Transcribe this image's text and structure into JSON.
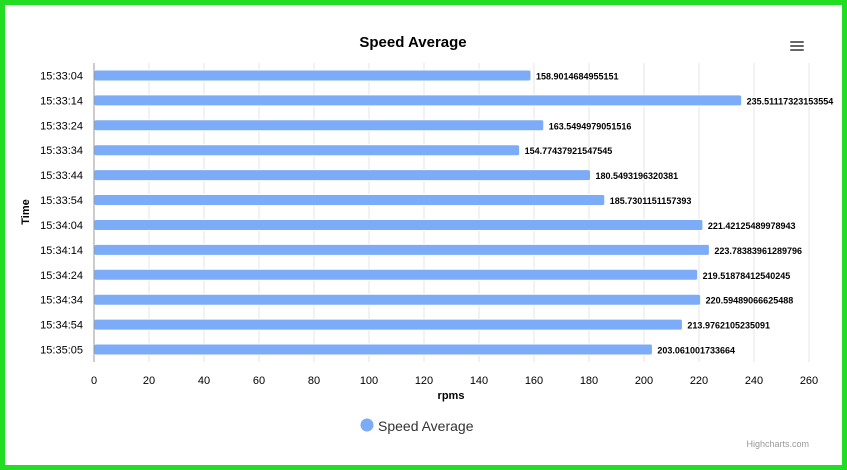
{
  "chart_data": {
    "type": "bar",
    "orientation": "horizontal",
    "title": "Speed Average",
    "xlabel": "rpms",
    "ylabel": "Time",
    "categories": [
      "15:33:04",
      "15:33:14",
      "15:33:24",
      "15:33:34",
      "15:33:44",
      "15:33:54",
      "15:34:04",
      "15:34:14",
      "15:34:24",
      "15:34:34",
      "15:34:54",
      "15:35:05"
    ],
    "series": [
      {
        "name": "Speed Average",
        "values": [
          158.9014684955151,
          235.51117323153554,
          163.5494979051516,
          154.77437921547545,
          180.5493196320381,
          185.7301151157393,
          221.42125489978943,
          223.78383961289796,
          219.51878412540245,
          220.59489066625488,
          213.9762105235091,
          203.061001733664
        ],
        "labels": [
          "158.9014684955151",
          "235.51117323153554",
          "163.5494979051516",
          "154.77437921547545",
          "180.5493196320381",
          "185.7301151157393",
          "221.42125489978943",
          "223.78383961289796",
          "219.51878412540245",
          "220.59489066625488",
          "213.9762105235091",
          "203.061001733664"
        ]
      }
    ],
    "xlim": [
      0,
      260
    ],
    "xticks": [
      0,
      20,
      40,
      60,
      80,
      100,
      120,
      140,
      160,
      180,
      200,
      220,
      240,
      260
    ],
    "grid": true,
    "legend": "bottom-center",
    "colors": {
      "bar": "#7cabf7",
      "grid": "#e6e6e6",
      "axis": "#999999",
      "frame": "#22dd22"
    }
  },
  "credits": "Highcharts.com",
  "menu_icon": "hamburger-menu-icon"
}
